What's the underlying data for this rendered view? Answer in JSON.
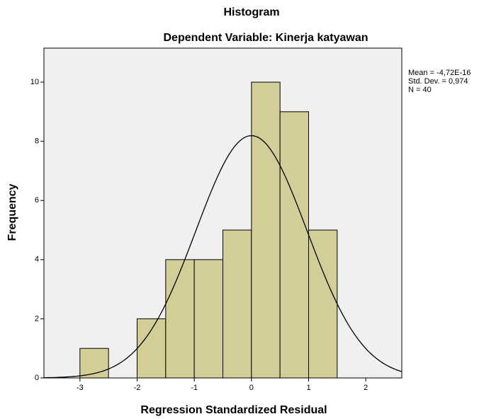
{
  "chart_data": {
    "type": "histogram",
    "title": "Histogram",
    "subtitle": "Dependent Variable: Kinerja katyawan",
    "xlabel": "Regression Standardized Residual",
    "ylabel": "Frequency",
    "bins": [
      -3,
      -2.5,
      -2,
      -1.5,
      -1,
      -0.5,
      0,
      0.5,
      1,
      1.5
    ],
    "values": [
      1,
      0,
      2,
      4,
      4,
      5,
      10,
      9,
      5
    ],
    "color": "#d3ce98",
    "xlim": [
      -3.63,
      2.63
    ],
    "ylim": [
      0,
      11.15
    ],
    "xticks": [
      -3,
      -2,
      -1,
      0,
      1,
      2
    ],
    "yticks": [
      0,
      2,
      4,
      6,
      8,
      10
    ],
    "grid": false,
    "stats": [
      {
        "value": -4.72e-16,
        "label": "Mean = -4,72E-16"
      },
      {
        "value": 0.974,
        "label": "Std. Dev. = 0,974"
      },
      {
        "value": 40,
        "label": "N = 40"
      }
    ]
  }
}
